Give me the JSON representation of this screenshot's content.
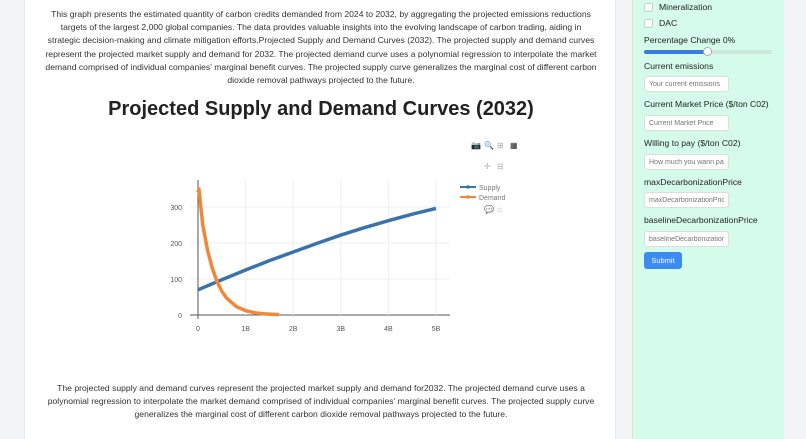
{
  "intro": "This graph presents the estimated quantity of carbon credits demanded from 2024 to 2032, by aggregating the projected emissions reductions targets of the largest 2,000 global companies. The data provides valuable insights into the evolving landscape of carbon trading, aiding in strategic decision-making and climate mitigation efforts.Projected Supply and Demand Curves (2032). The projected supply and demand curves represent the projected market supply and demand for 2032. The projected demand curve uses a polynomial regression to interpolate the market demand comprised of individual companies' marginal benefit curves. The projected supply curve generalizes the marginal cost of different carbon dioxide removal pathways projected to the future.",
  "footer": "The projected supply and demand curves represent the projected market supply and demand for2032. The projected demand curve uses a polynomial regression to interpolate the market demand comprised of individual companies' marginal benefit curves. The projected supply curve generalizes the marginal cost of different carbon dioxide removal pathways projected to the future.",
  "chart_data": {
    "type": "line",
    "title": "Projected Supply and Demand Curves (2032)",
    "xlim": [
      0,
      5000000000
    ],
    "ylim": [
      0,
      350
    ],
    "xticks": [
      {
        "v": 0,
        "label": "0"
      },
      {
        "v": 1000000000,
        "label": "1B"
      },
      {
        "v": 2000000000,
        "label": "2B"
      },
      {
        "v": 3000000000,
        "label": "3B"
      },
      {
        "v": 4000000000,
        "label": "4B"
      },
      {
        "v": 5000000000,
        "label": "5B"
      }
    ],
    "yticks": [
      {
        "v": 0,
        "label": "0"
      },
      {
        "v": 100,
        "label": "100"
      },
      {
        "v": 200,
        "label": "200"
      },
      {
        "v": 300,
        "label": "300"
      }
    ],
    "grid": true,
    "legend": "top-right",
    "series": [
      {
        "name": "Supply",
        "color": "#3a73ac",
        "x": [
          0,
          500000000,
          1000000000,
          1500000000,
          2000000000,
          2500000000,
          3000000000,
          3500000000,
          4000000000,
          4500000000,
          5000000000
        ],
        "y": [
          70,
          98,
          125,
          151,
          175,
          199,
          222,
          243,
          262,
          280,
          296
        ]
      },
      {
        "name": "Demand",
        "color": "#f0873a",
        "x": [
          0,
          20000000,
          100000000,
          200000000,
          300000000,
          400000000,
          500000000,
          600000000,
          800000000,
          1000000000,
          1200000000,
          1400000000,
          1700000000
        ],
        "y": [
          340,
          350,
          250,
          180,
          130,
          93,
          66,
          47,
          24,
          12,
          6,
          3,
          1
        ]
      }
    ]
  },
  "modebar": [
    "camera-icon",
    "zoom-icon",
    "plus-icon",
    "plotly-logo-icon",
    "pan-icon",
    "minus-icon",
    "compare-icon",
    "home-icon"
  ],
  "sidebar": {
    "checkboxes": [
      {
        "label": "Mineralization"
      },
      {
        "label": "DAC"
      }
    ],
    "slider_label": "Percentage Change 0%",
    "slider_value": 50,
    "fields": [
      {
        "label": "Current emissions",
        "placeholder": "Your current emissions"
      },
      {
        "label": "Current Market Price ($/ton C02)",
        "placeholder": "Current Market Price"
      },
      {
        "label": "Willing to pay ($/ton C02)",
        "placeholder": "How much you wann pay"
      },
      {
        "label": "maxDecarbonizationPrice",
        "placeholder": "maxDecarbonizationPrice"
      },
      {
        "label": "baselineDecarbonizationPrice",
        "placeholder": "baselineDecarbonizationPrice"
      }
    ],
    "submit": "Submit"
  }
}
